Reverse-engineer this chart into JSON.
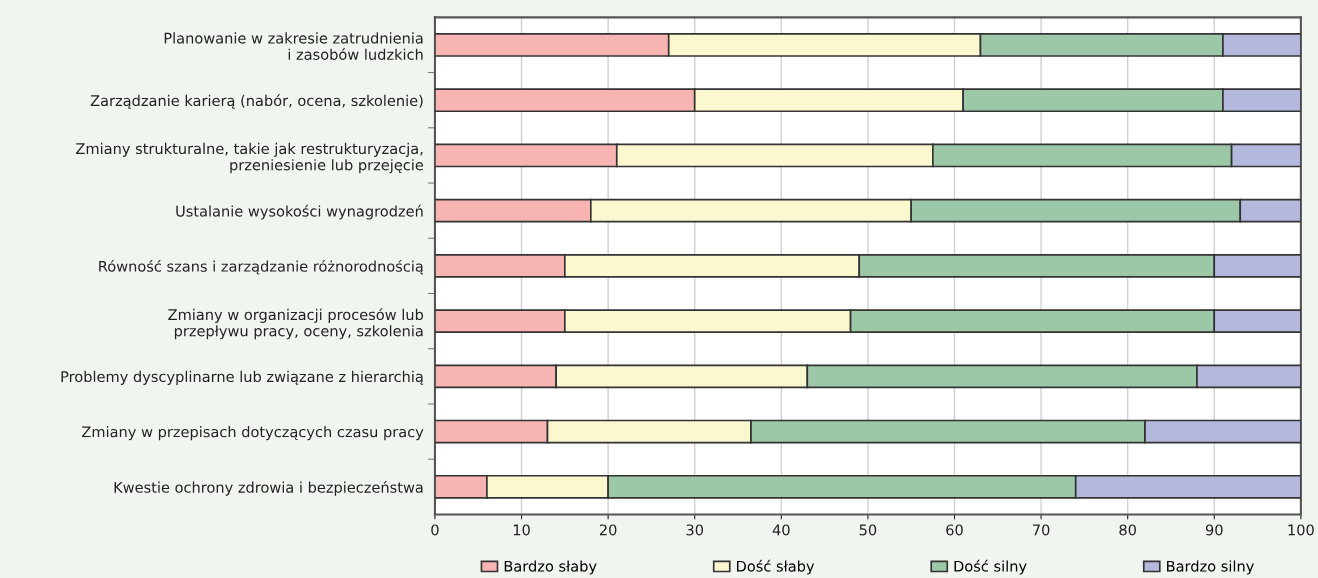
{
  "chart_data": {
    "type": "bar",
    "orientation": "horizontal",
    "stacked": true,
    "categories": [
      "Planowanie w zakresie zatrudnienia\ni zasobów ludzkich",
      "Zarządzanie karierą (nabór, ocena, szkolenie)",
      "Zmiany strukturalne, takie jak restrukturyzacja,\nprzeniesienie lub przejęcie",
      "Ustalanie wysokości wynagrodzeń",
      "Równość szans i zarządzanie różnorodnością",
      "Zmiany w organizacji procesów lub\nprzepływu pracy, oceny, szkolenia",
      "Problemy dyscyplinarne lub związane z hierarchią",
      "Zmiany w przepisach dotyczących czasu pracy",
      "Kwestie ochrony zdrowia i bezpieczeństwa"
    ],
    "series": [
      {
        "name": "Bardzo słaby",
        "color": "#f8b4b2",
        "values": [
          27,
          30,
          21,
          18,
          15,
          15,
          14,
          13,
          6
        ]
      },
      {
        "name": "Dość słaby",
        "color": "#fbf8cf",
        "values": [
          36,
          31,
          36.5,
          37,
          34,
          33,
          29,
          23.5,
          14
        ]
      },
      {
        "name": "Dość silny",
        "color": "#9dc8a8",
        "values": [
          28,
          30,
          34.5,
          38,
          41,
          42,
          45,
          45.5,
          54
        ]
      },
      {
        "name": "Bardzo silny",
        "color": "#b4b8dc",
        "values": [
          9,
          9,
          8,
          7,
          10,
          10,
          12,
          18,
          26
        ]
      }
    ],
    "xlim": [
      0,
      100
    ],
    "xticks": [
      0,
      10,
      20,
      30,
      40,
      50,
      60,
      70,
      80,
      90,
      100
    ],
    "grid": "x",
    "legend": "bottom"
  }
}
